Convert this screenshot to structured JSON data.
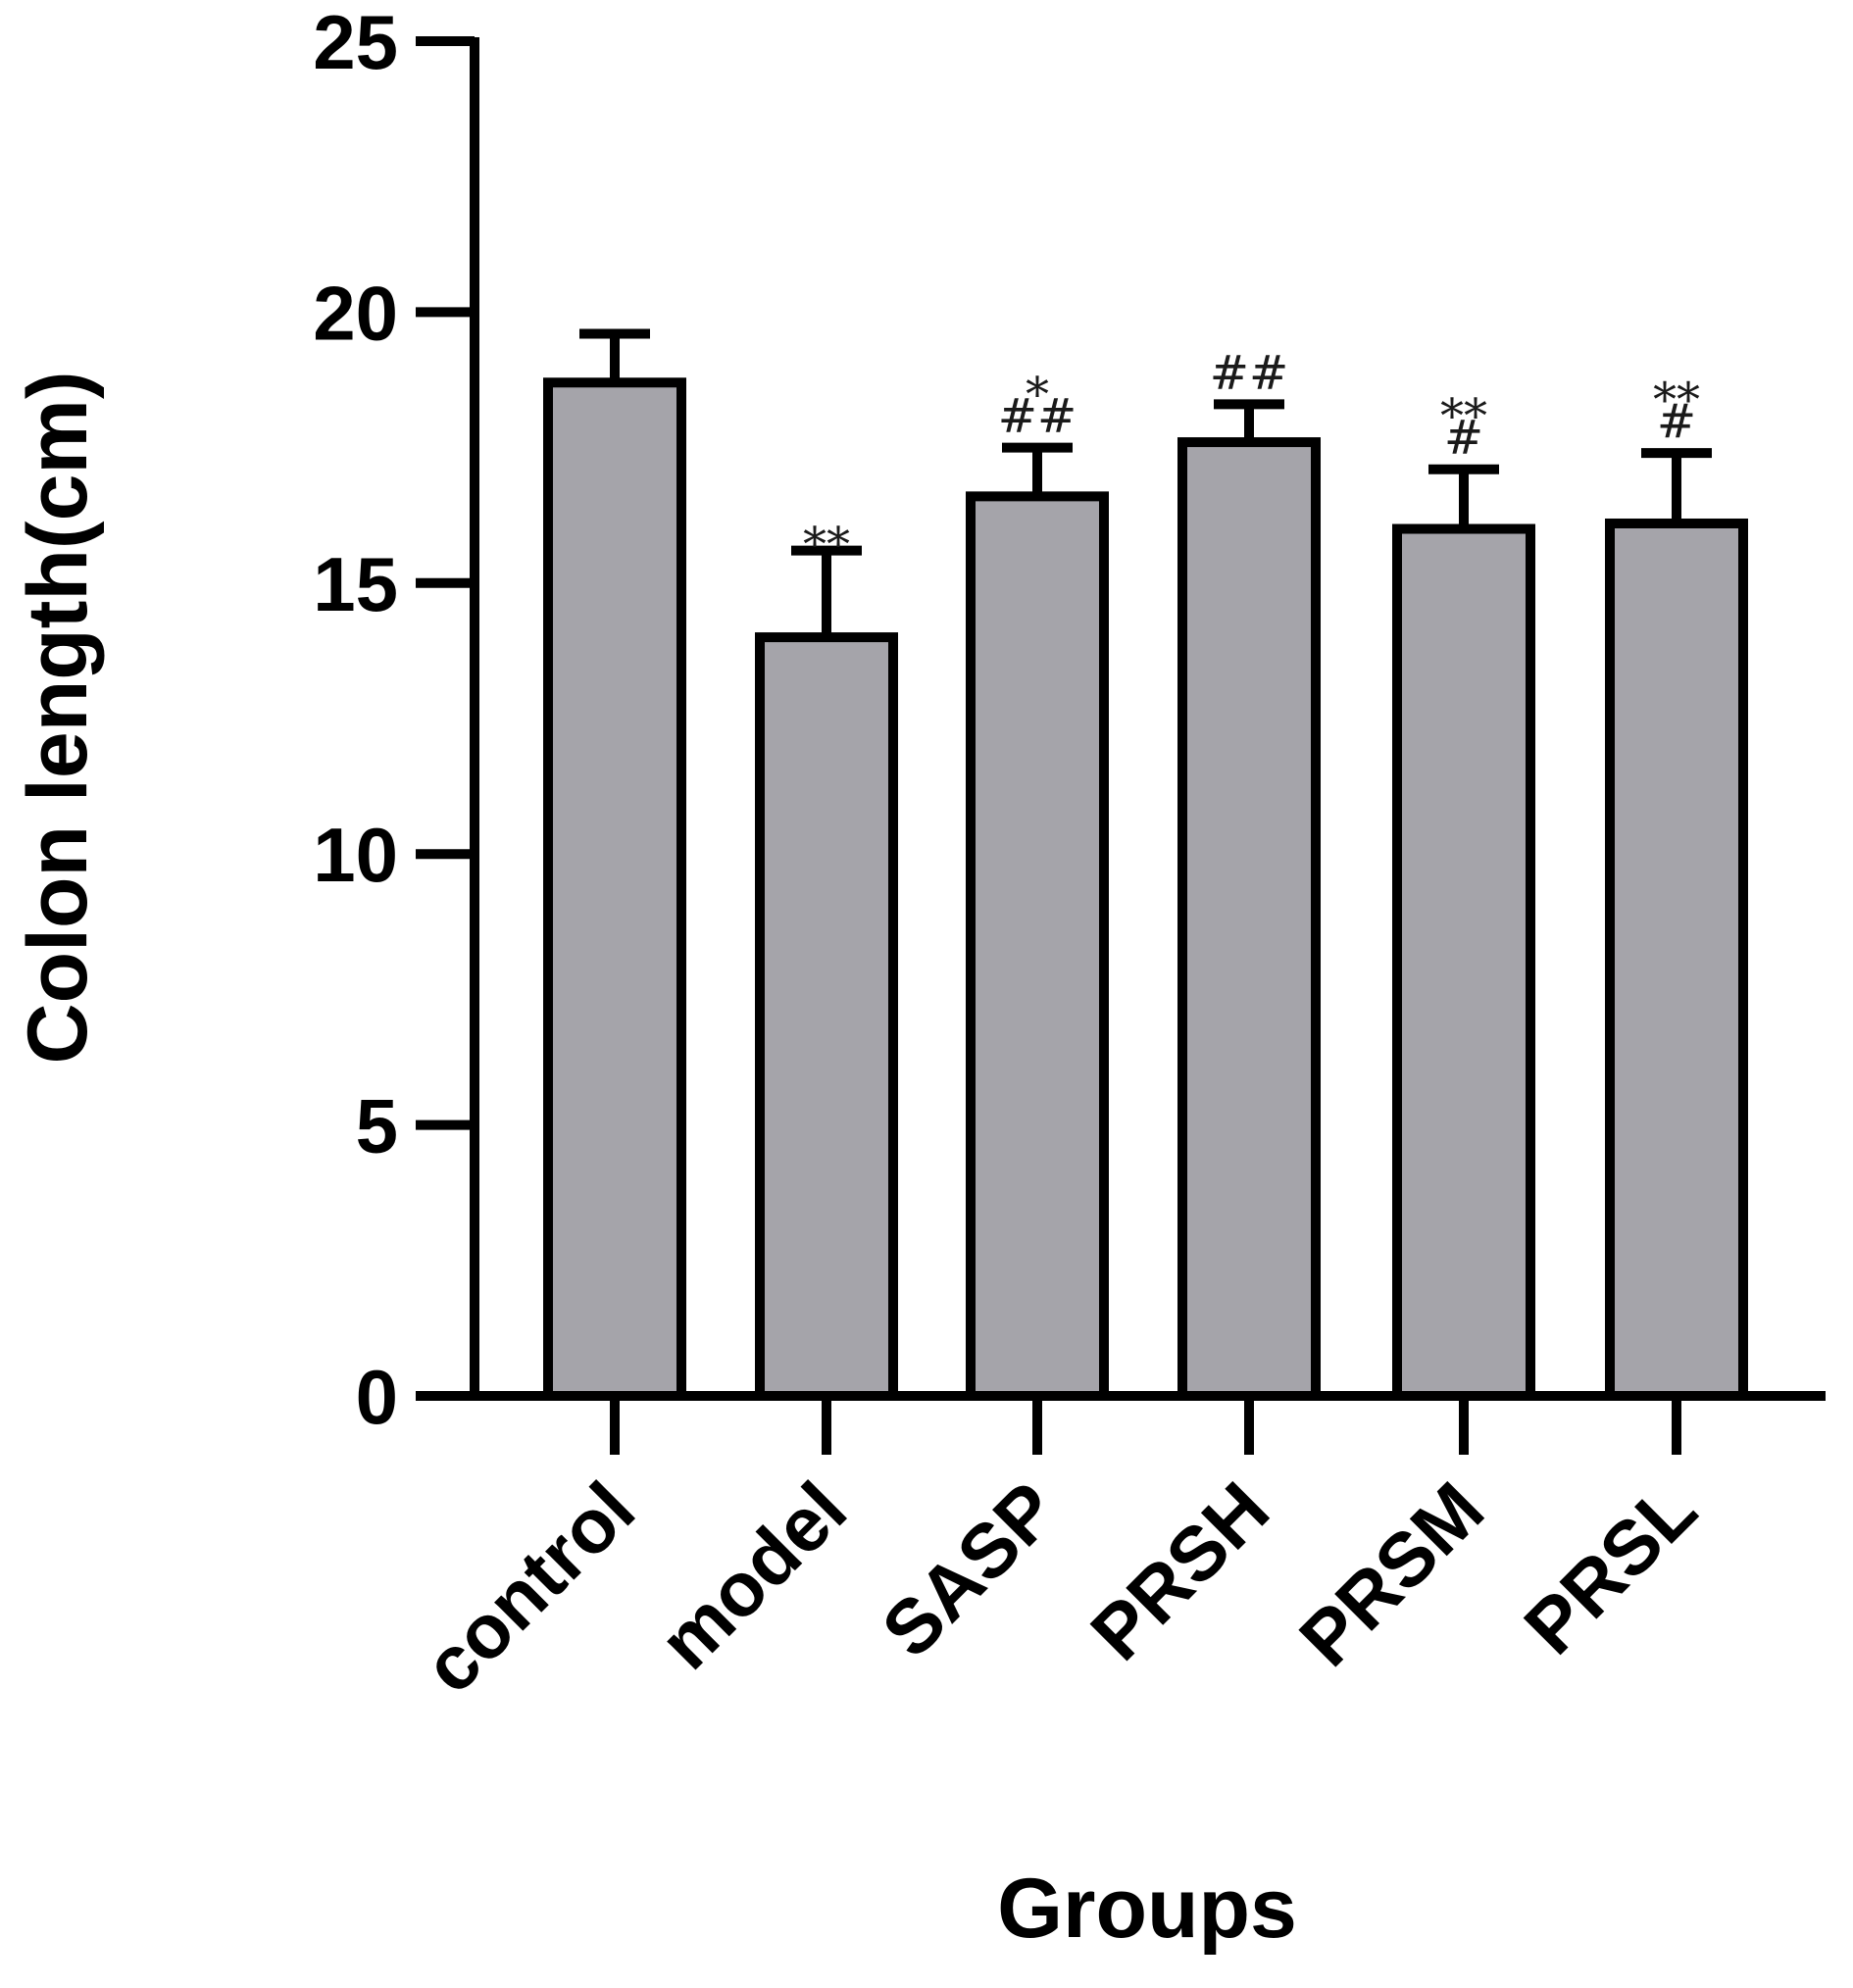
{
  "chart_data": {
    "type": "bar",
    "title": "",
    "xlabel": "Groups",
    "ylabel": "Colon length(cm)",
    "ylim": [
      0,
      25
    ],
    "yticks": [
      0,
      5,
      10,
      15,
      20,
      25
    ],
    "categories": [
      "control",
      "model",
      "SASP",
      "PRSH",
      "PRSM",
      "PRSL"
    ],
    "values": [
      18.7,
      14.0,
      16.6,
      17.6,
      16.0,
      16.1
    ],
    "errors": [
      0.9,
      1.6,
      0.9,
      0.7,
      1.1,
      1.3
    ],
    "annotations": [
      [],
      [
        "**"
      ],
      [
        "*",
        "##"
      ],
      [
        "##"
      ],
      [
        "**",
        "#"
      ],
      [
        "**",
        "#"
      ]
    ],
    "grid": false,
    "legend": "none",
    "bar_color": "#a5a4aa",
    "outline_color": "#000000"
  }
}
